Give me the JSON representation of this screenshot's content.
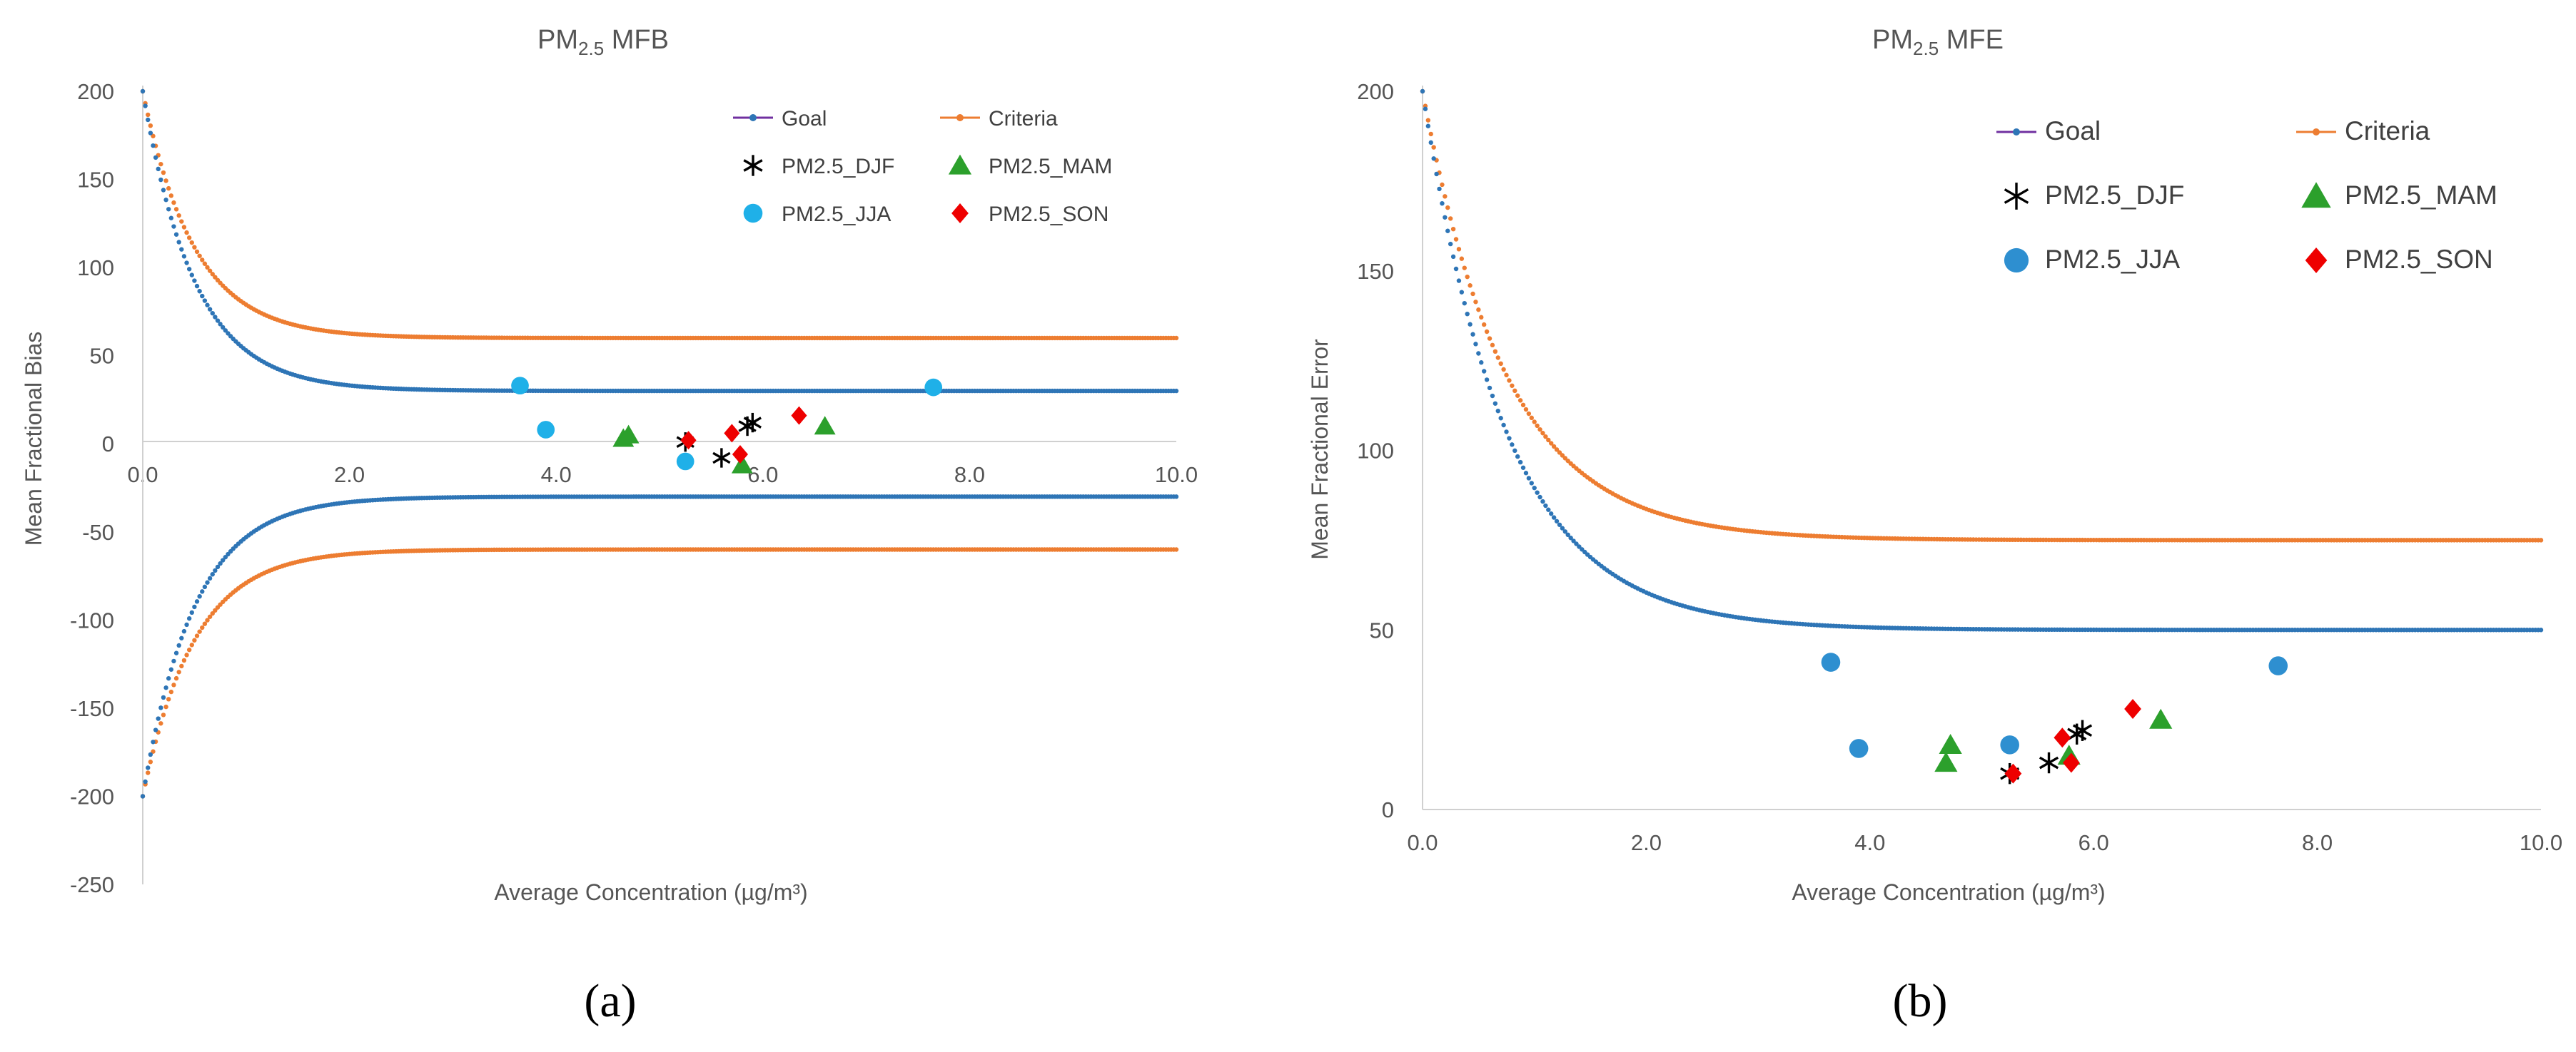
{
  "colors": {
    "goal": "#2e75b6",
    "goal_legend": "#7030a0",
    "criteria": "#ed7d31",
    "djf": "#000000",
    "mam": "#2ca02c",
    "jja_a": "#1fb0e8",
    "jja_b": "#2e8fd0",
    "son": "#ee0000",
    "axis": "#d0d0d0",
    "text": "#555555"
  },
  "chart_data": [
    {
      "type": "scatter",
      "panel": "a",
      "title": "PM",
      "title_sub": "2.5",
      "title_rest": " MFB",
      "xlabel": "Average Concentration (µg/m³)",
      "ylabel": "Mean Fractional Bias",
      "xlim": [
        0,
        10
      ],
      "ylim": [
        -250,
        200
      ],
      "x_ticks": [
        "0.0",
        "2.0",
        "4.0",
        "6.0",
        "8.0",
        "10.0"
      ],
      "y_ticks": [
        "200",
        "150",
        "100",
        "50",
        "0",
        "-50",
        "-100",
        "-150",
        "-200",
        "-250"
      ],
      "legend": [
        "Goal",
        "Criteria",
        "PM2.5_DJF",
        "PM2.5_MAM",
        "PM2.5_JJA",
        "PM2.5_SON"
      ],
      "legend_position": "top-right",
      "goal_curve": {
        "formula": "±(170·e^(−x/0.5)+30)",
        "asymptote": 30,
        "x_range": [
          0,
          10
        ]
      },
      "criteria_curve": {
        "formula": "±(140·e^(−x/0.5)+60)",
        "asymptote": 60,
        "x_range": [
          0,
          10
        ]
      },
      "series": [
        {
          "name": "PM2.5_DJF",
          "marker": "star",
          "points": [
            [
              5.25,
              1
            ],
            [
              5.6,
              -8
            ],
            [
              5.85,
              10
            ],
            [
              5.9,
              12
            ]
          ]
        },
        {
          "name": "PM2.5_MAM",
          "marker": "triangle",
          "points": [
            [
              4.65,
              3
            ],
            [
              4.7,
              5
            ],
            [
              5.8,
              -12
            ],
            [
              6.6,
              10
            ]
          ]
        },
        {
          "name": "PM2.5_JJA",
          "marker": "circle",
          "points": [
            [
              3.65,
              33
            ],
            [
              3.9,
              8
            ],
            [
              5.25,
              -10
            ],
            [
              7.65,
              32
            ]
          ]
        },
        {
          "name": "PM2.5_SON",
          "marker": "diamond",
          "points": [
            [
              5.28,
              2
            ],
            [
              5.7,
              6
            ],
            [
              5.78,
              -6
            ],
            [
              6.35,
              16
            ]
          ]
        }
      ]
    },
    {
      "type": "scatter",
      "panel": "b",
      "title": "PM",
      "title_sub": "2.5",
      "title_rest": " MFE",
      "xlabel": "Average Concentration (µg/m³)",
      "ylabel": "Mean Fractional Error",
      "xlim": [
        0,
        10
      ],
      "ylim": [
        0,
        200
      ],
      "x_ticks": [
        "0.0",
        "2.0",
        "4.0",
        "6.0",
        "8.0",
        "10.0"
      ],
      "y_ticks": [
        "200",
        "150",
        "100",
        "50",
        "0"
      ],
      "legend": [
        "Goal",
        "Criteria",
        "PM2.5_DJF",
        "PM2.5_MAM",
        "PM2.5_JJA",
        "PM2.5_SON"
      ],
      "legend_position": "top-right",
      "goal_curve": {
        "formula": "150·e^(−x/0.75)+50",
        "asymptote": 50,
        "x_range": [
          0,
          10
        ]
      },
      "criteria_curve": {
        "formula": "125·e^(−x/0.75)+75",
        "asymptote": 75,
        "x_range": [
          0,
          10
        ]
      },
      "series": [
        {
          "name": "PM2.5_DJF",
          "marker": "star",
          "points": [
            [
              5.25,
              10
            ],
            [
              5.6,
              13
            ],
            [
              5.85,
              21
            ],
            [
              5.9,
              22
            ]
          ]
        },
        {
          "name": "PM2.5_MAM",
          "marker": "triangle",
          "points": [
            [
              4.68,
              13
            ],
            [
              4.72,
              18
            ],
            [
              5.78,
              15
            ],
            [
              6.6,
              25
            ]
          ]
        },
        {
          "name": "PM2.5_JJA",
          "marker": "circle",
          "points": [
            [
              3.65,
              41
            ],
            [
              3.9,
              17
            ],
            [
              5.25,
              18
            ],
            [
              7.65,
              40
            ]
          ]
        },
        {
          "name": "PM2.5_SON",
          "marker": "diamond",
          "points": [
            [
              5.28,
              10
            ],
            [
              5.72,
              20
            ],
            [
              5.8,
              13
            ],
            [
              6.35,
              28
            ]
          ]
        }
      ]
    }
  ],
  "captions": [
    "(a)",
    "(b)"
  ]
}
